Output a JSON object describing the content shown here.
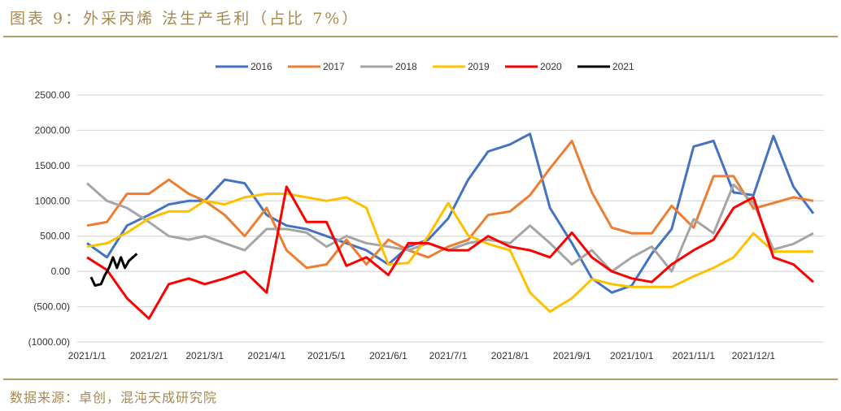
{
  "header": {
    "title": "图表 9：外采丙烯 法生产毛利（占比 7%）"
  },
  "footer": {
    "source": "数据来源：卓创，混沌天成研究院"
  },
  "chart_data": {
    "type": "line",
    "title": "",
    "xlabel": "",
    "ylabel": "",
    "ylim": [
      -1000,
      2500
    ],
    "xlim": [
      "2021-01-01",
      "2021-12-31"
    ],
    "grid": true,
    "legend": "top",
    "y_ticks": [
      2500,
      2000,
      1500,
      1000,
      500,
      0,
      -500,
      -1000
    ],
    "y_tick_labels": [
      "2500.00",
      "2000.00",
      "1500.00",
      "1000.00",
      "500.00",
      "0.00",
      "(500.00)",
      "(1000.00)"
    ],
    "negative_label_color": "#ff0000",
    "x_ticks": [
      "2021-01-01",
      "2021-02-01",
      "2021-03-01",
      "2021-04-01",
      "2021-05-01",
      "2021-06-01",
      "2021-07-01",
      "2021-08-01",
      "2021-09-01",
      "2021-10-01",
      "2021-11-01",
      "2021-12-01"
    ],
    "x_tick_labels": [
      "2021/1/1",
      "2021/2/1",
      "2021/3/1",
      "2021/4/1",
      "2021/5/1",
      "2021/6/1",
      "2021/7/1",
      "2021/8/1",
      "2021/9/1",
      "2021/10/1",
      "2021/11/1",
      "2021/12/1"
    ],
    "x": [
      "2021-01-01",
      "2021-01-11",
      "2021-01-21",
      "2021-02-01",
      "2021-02-11",
      "2021-02-21",
      "2021-03-01",
      "2021-03-11",
      "2021-03-21",
      "2021-04-01",
      "2021-04-11",
      "2021-04-21",
      "2021-05-01",
      "2021-05-11",
      "2021-05-21",
      "2021-06-01",
      "2021-06-11",
      "2021-06-21",
      "2021-07-01",
      "2021-07-11",
      "2021-07-21",
      "2021-08-01",
      "2021-08-11",
      "2021-08-21",
      "2021-09-01",
      "2021-09-11",
      "2021-09-21",
      "2021-10-01",
      "2021-10-11",
      "2021-10-21",
      "2021-11-01",
      "2021-11-11",
      "2021-11-21",
      "2021-12-01",
      "2021-12-11",
      "2021-12-21",
      "2021-12-31"
    ],
    "series": [
      {
        "name": "2016",
        "color": "#4472c4",
        "values": [
          400,
          200,
          650,
          800,
          950,
          1000,
          1000,
          1300,
          1250,
          800,
          650,
          600,
          500,
          400,
          300,
          100,
          350,
          450,
          750,
          1300,
          1700,
          1800,
          1950,
          900,
          400,
          -100,
          -300,
          -200,
          250,
          600,
          1770,
          1850,
          1120,
          1080,
          1920,
          1200,
          820
        ]
      },
      {
        "name": "2017",
        "color": "#ed7d31",
        "values": [
          650,
          700,
          1100,
          1100,
          1300,
          1100,
          1000,
          800,
          500,
          900,
          300,
          50,
          100,
          450,
          100,
          450,
          300,
          200,
          350,
          450,
          800,
          850,
          1080,
          1460,
          1850,
          1120,
          620,
          540,
          540,
          930,
          620,
          1350,
          1350,
          890,
          970,
          1050,
          1000
        ]
      },
      {
        "name": "2018",
        "color": "#a5a5a5",
        "values": [
          1250,
          1000,
          900,
          700,
          500,
          450,
          500,
          400,
          300,
          600,
          600,
          550,
          350,
          500,
          400,
          350,
          300,
          400,
          300,
          400,
          450,
          400,
          650,
          400,
          100,
          300,
          0,
          200,
          350,
          0,
          740,
          540,
          1230,
          970,
          310,
          390,
          540
        ]
      },
      {
        "name": "2019",
        "color": "#ffc000",
        "values": [
          350,
          400,
          550,
          750,
          850,
          850,
          1000,
          950,
          1050,
          1100,
          1100,
          1050,
          1000,
          1050,
          900,
          100,
          120,
          500,
          970,
          510,
          390,
          300,
          -300,
          -570,
          -380,
          -110,
          -180,
          -220,
          -220,
          -220,
          -70,
          50,
          200,
          540,
          280,
          280,
          280
        ]
      },
      {
        "name": "2020",
        "color": "#ff0000",
        "values": [
          200,
          20,
          -380,
          -670,
          -180,
          -100,
          -180,
          -100,
          0,
          -300,
          1200,
          700,
          700,
          80,
          200,
          -50,
          400,
          400,
          300,
          300,
          500,
          350,
          300,
          200,
          550,
          200,
          0,
          -100,
          -150,
          100,
          300,
          450,
          900,
          1050,
          200,
          100,
          -150
        ]
      },
      {
        "name": "2021",
        "color": "#000000",
        "x": [
          "2021-01-03",
          "2021-01-05",
          "2021-01-08",
          "2021-01-10",
          "2021-01-12",
          "2021-01-14",
          "2021-01-16",
          "2021-01-18",
          "2021-01-20",
          "2021-01-22",
          "2021-01-24",
          "2021-01-26"
        ],
        "values": [
          -80,
          -200,
          -180,
          -50,
          50,
          200,
          50,
          200,
          50,
          150,
          200,
          250
        ]
      }
    ]
  }
}
